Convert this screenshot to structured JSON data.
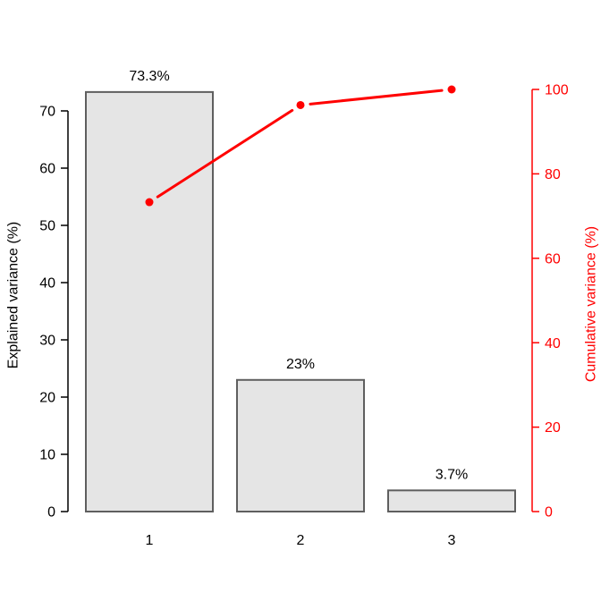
{
  "chart_data": {
    "type": "bar",
    "title": "",
    "categories": [
      "1",
      "2",
      "3"
    ],
    "series": [
      {
        "name": "Explained variance (%)",
        "type": "bar",
        "axis": "left",
        "values": [
          73.3,
          23,
          3.7
        ]
      },
      {
        "name": "Cumulative variance (%)",
        "type": "line",
        "axis": "right",
        "values": [
          73.3,
          96.3,
          100
        ]
      }
    ],
    "bar_value_labels": [
      "73.3%",
      "23%",
      "3.7%"
    ],
    "x_axis": {
      "tick_labels": [
        "1",
        "2",
        "3"
      ]
    },
    "left_axis": {
      "label": "Explained variance (%)",
      "ticks": [
        0,
        10,
        20,
        30,
        40,
        50,
        60,
        70
      ],
      "lim": [
        0,
        77
      ],
      "color": "#000000"
    },
    "right_axis": {
      "label": "Cumulative variance (%)",
      "ticks": [
        0,
        20,
        40,
        60,
        80,
        100
      ],
      "lim": [
        0,
        106
      ],
      "color": "#ff0000"
    },
    "colors": {
      "bar_fill": "#e5e5e5",
      "bar_border": "#5f5f5f",
      "line": "#ff0000",
      "point": "#ff0000",
      "axis": "#000000",
      "text": "#000000"
    },
    "grid": false,
    "legend": "none"
  }
}
